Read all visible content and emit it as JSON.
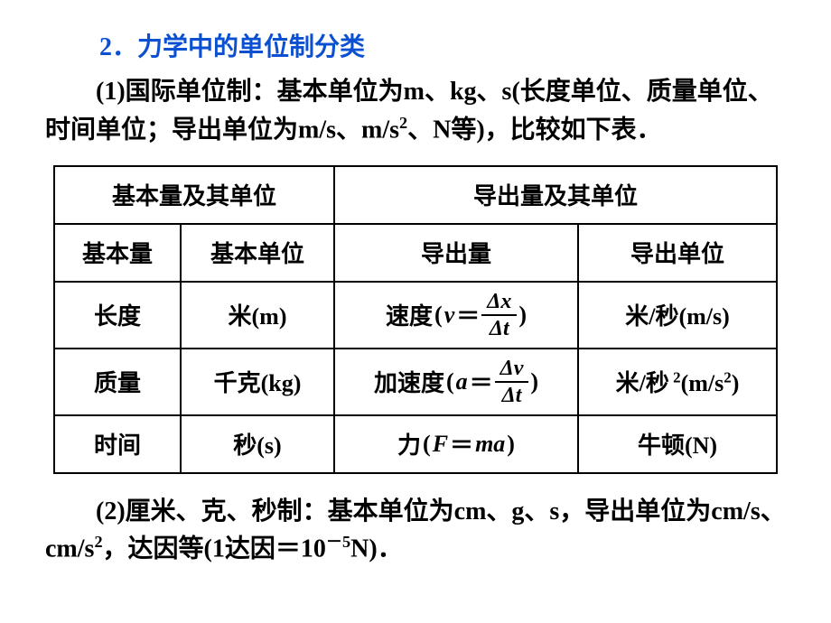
{
  "section": {
    "title": "2．力学中的单位制分类",
    "para1_a": "(1)国际单位制：基本单位为m、kg、s(长度单位、质量单位、时间单位；导出单位为m/s、m/s",
    "para1_sup": "2",
    "para1_b": "、N等)，比较如下表．",
    "para2_a": "(2)厘米、克、秒制：基本单位为cm、g、s，导出单位为cm/s、cm/s",
    "para2_sup": "2",
    "para2_b": "，达因等(1达因＝10",
    "para2_sup2": "－5",
    "para2_c": "N)．"
  },
  "table": {
    "header_left": "基本量及其单位",
    "header_right": "导出量及其单位",
    "subheaders": {
      "c1": "基本量",
      "c2": "基本单位",
      "c3": "导出量",
      "c4": "导出单位"
    },
    "rows": [
      {
        "base_qty": "长度",
        "base_unit": "米(m)",
        "derived_name": "速度",
        "derived_var": "v",
        "derived_frac_num": "Δx",
        "derived_frac_den": "Δt",
        "derived_unit": "米/秒(m/s)"
      },
      {
        "base_qty": "质量",
        "base_unit": "千克(kg)",
        "derived_name": "加速度",
        "derived_var": "a",
        "derived_frac_num": "Δv",
        "derived_frac_den": "Δt",
        "derived_unit_pre": "米/秒",
        "derived_unit_sup": " 2",
        "derived_unit_post": "(m/s",
        "derived_unit_sup2": "2",
        "derived_unit_post2": ")"
      },
      {
        "base_qty": "时间",
        "base_unit": "秒(s)",
        "derived_name": "力",
        "derived_var": "F",
        "derived_expr": "ma",
        "derived_unit": "牛顿(N)"
      }
    ],
    "col_widths": [
      "140px",
      "170px",
      "270px",
      "220px"
    ]
  },
  "style": {
    "title_color": "#0b50d1",
    "text_color": "#000000",
    "border_color": "#000000",
    "bg_color": "#ffffff"
  }
}
